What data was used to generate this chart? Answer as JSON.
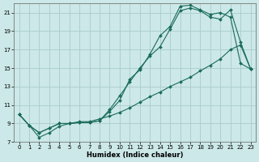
{
  "xlabel": "Humidex (Indice chaleur)",
  "ylabel": "",
  "bg_color": "#cce8e8",
  "grid_color": "#aacccc",
  "line_color": "#1a6b5a",
  "xlim": [
    -0.5,
    23.5
  ],
  "ylim": [
    7,
    22
  ],
  "xticks": [
    0,
    1,
    2,
    3,
    4,
    5,
    6,
    7,
    8,
    9,
    10,
    11,
    12,
    13,
    14,
    15,
    16,
    17,
    18,
    19,
    20,
    21,
    22,
    23
  ],
  "yticks": [
    7,
    9,
    11,
    13,
    15,
    17,
    19,
    21
  ],
  "curve1_x": [
    0,
    1,
    2,
    3,
    4,
    5,
    6,
    7,
    8,
    9,
    10,
    11,
    12,
    13,
    14,
    15,
    16,
    17,
    18,
    19,
    20,
    21,
    22,
    23
  ],
  "curve1_y": [
    10.0,
    8.8,
    8.0,
    8.5,
    9.0,
    9.0,
    9.1,
    9.1,
    9.3,
    10.5,
    12.0,
    13.5,
    15.0,
    16.3,
    17.3,
    19.2,
    21.2,
    21.5,
    21.2,
    20.5,
    20.3,
    21.3,
    17.8,
    14.9
  ],
  "curve2_x": [
    0,
    1,
    2,
    3,
    4,
    5,
    6,
    7,
    8,
    9,
    10,
    11,
    12,
    13,
    14,
    15,
    16,
    17,
    18,
    19,
    20,
    21,
    22,
    23
  ],
  "curve2_y": [
    10.0,
    8.8,
    8.0,
    8.5,
    9.0,
    9.0,
    9.1,
    9.1,
    9.3,
    10.3,
    11.5,
    13.8,
    14.8,
    16.5,
    18.5,
    19.5,
    21.7,
    21.8,
    21.3,
    20.8,
    21.0,
    20.5,
    15.5,
    14.9
  ],
  "curve3_x": [
    0,
    1,
    2,
    3,
    4,
    5,
    6,
    7,
    8,
    9,
    10,
    11,
    12,
    13,
    14,
    15,
    16,
    17,
    18,
    19,
    20,
    21,
    22,
    23
  ],
  "curve3_y": [
    10.0,
    8.8,
    7.5,
    8.0,
    8.7,
    9.0,
    9.2,
    9.2,
    9.5,
    9.8,
    10.2,
    10.7,
    11.3,
    11.9,
    12.4,
    13.0,
    13.5,
    14.0,
    14.7,
    15.3,
    16.0,
    17.0,
    17.5,
    14.9
  ]
}
